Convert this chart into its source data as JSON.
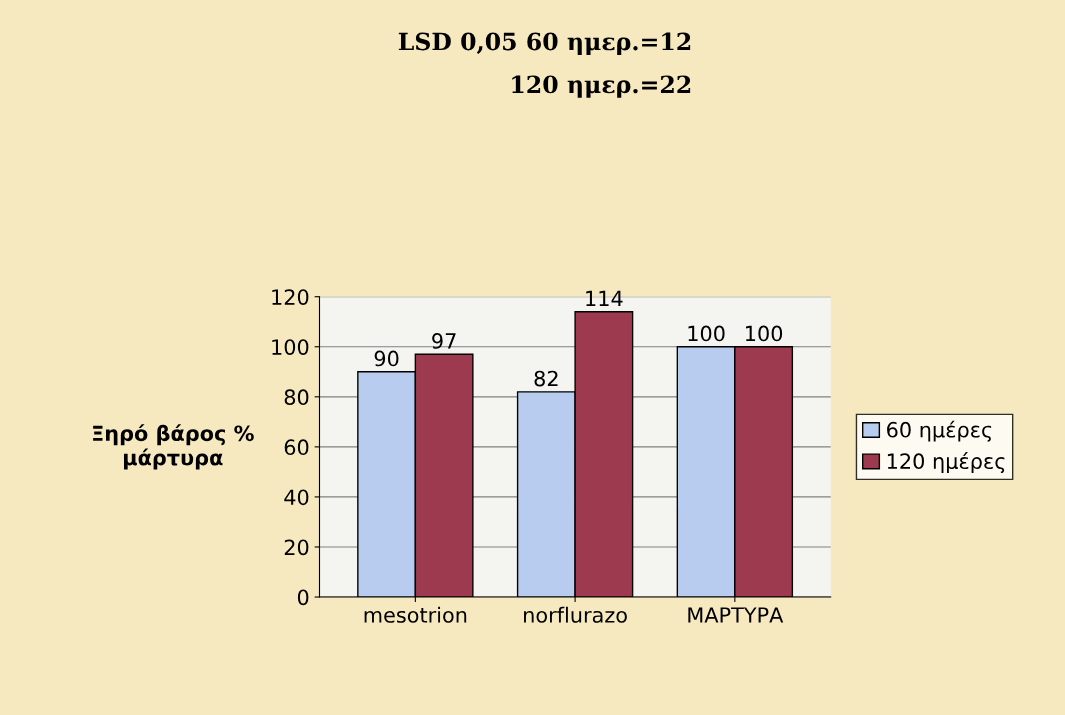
{
  "chart_data": {
    "type": "bar",
    "annotations": [
      "LSD 0,05 60 ημερ.=12",
      "120 ημερ.=22"
    ],
    "ylabel": "Ξηρό βάρος %\nμάρτυρα",
    "categories": [
      "mesotrion",
      "norflurazo",
      "ΜΑΡΤΥΡΑ"
    ],
    "series": [
      {
        "name": "60 ημέρες",
        "color": "#b8ccf0",
        "values": [
          90,
          82,
          100
        ]
      },
      {
        "name": "120 ημέρες",
        "color": "#9e3a50",
        "values": [
          97,
          114,
          100
        ]
      }
    ],
    "ylim": [
      0,
      120
    ],
    "yticks": [
      0,
      20,
      40,
      60,
      80,
      100,
      120
    ],
    "grid": "y",
    "legend": "right",
    "data_labels": true
  }
}
